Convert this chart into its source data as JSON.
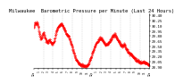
{
  "title": "Milwaukee  Barometric Pressure per Minute (Last 24 Hours)",
  "ylabel_right": [
    "30.40",
    "30.25",
    "30.10",
    "29.95",
    "29.80",
    "29.65",
    "29.50",
    "29.35",
    "29.20",
    "29.05",
    "28.90"
  ],
  "ylim": [
    28.85,
    30.45
  ],
  "num_points": 1440,
  "bg_color": "#ffffff",
  "line_color": "#ff0000",
  "grid_color": "#bbbbbb",
  "title_fontsize": 4.0,
  "tick_fontsize": 3.0,
  "control_points": [
    [
      0,
      30.05
    ],
    [
      0.3,
      30.2
    ],
    [
      0.8,
      30.15
    ],
    [
      1.2,
      29.85
    ],
    [
      1.5,
      29.7
    ],
    [
      2.0,
      29.9
    ],
    [
      2.3,
      29.75
    ],
    [
      2.8,
      29.6
    ],
    [
      3.2,
      29.7
    ],
    [
      3.8,
      29.55
    ],
    [
      4.2,
      29.65
    ],
    [
      4.8,
      30.0
    ],
    [
      5.2,
      30.1
    ],
    [
      5.8,
      30.15
    ],
    [
      6.3,
      30.0
    ],
    [
      6.8,
      29.85
    ],
    [
      7.2,
      29.8
    ],
    [
      7.8,
      29.55
    ],
    [
      8.3,
      29.3
    ],
    [
      8.8,
      29.1
    ],
    [
      9.3,
      29.0
    ],
    [
      9.8,
      28.95
    ],
    [
      10.3,
      28.92
    ],
    [
      10.8,
      28.9
    ],
    [
      11.2,
      28.95
    ],
    [
      11.8,
      29.15
    ],
    [
      12.3,
      29.35
    ],
    [
      12.8,
      29.55
    ],
    [
      13.3,
      29.65
    ],
    [
      13.8,
      29.75
    ],
    [
      14.2,
      29.7
    ],
    [
      14.8,
      29.55
    ],
    [
      15.2,
      29.55
    ],
    [
      15.8,
      29.65
    ],
    [
      16.2,
      29.75
    ],
    [
      16.8,
      29.85
    ],
    [
      17.2,
      29.75
    ],
    [
      17.8,
      29.6
    ],
    [
      18.2,
      29.5
    ],
    [
      18.8,
      29.55
    ],
    [
      19.2,
      29.4
    ],
    [
      19.8,
      29.3
    ],
    [
      20.3,
      29.25
    ],
    [
      20.8,
      29.15
    ],
    [
      21.3,
      29.1
    ],
    [
      21.8,
      29.05
    ],
    [
      22.3,
      29.0
    ],
    [
      22.8,
      29.05
    ],
    [
      23.3,
      29.0
    ],
    [
      24.0,
      28.95
    ]
  ]
}
